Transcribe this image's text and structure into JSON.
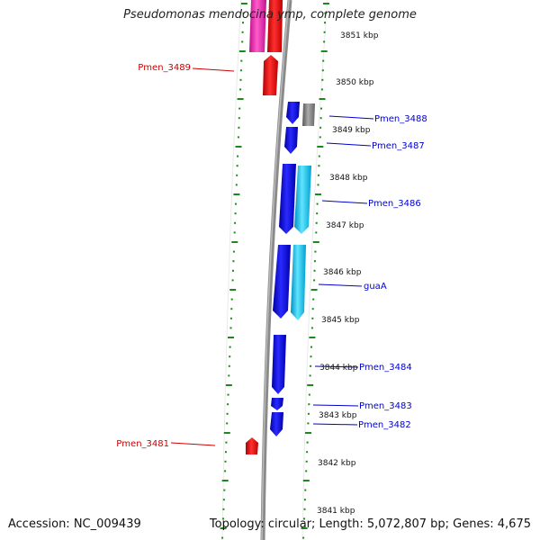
{
  "title": "Pseudomonas mendocina ymp, complete genome",
  "accession": "Accession: NC_009439",
  "summary": "Topology: circular; Length: 5,072,807 bp; Genes: 4,675",
  "colors": {
    "backbone": "#888888",
    "ticks": "#1a8a1a",
    "forward_label": "#cc0000",
    "reverse_label": "#0000cc",
    "gene_red": "#ee0000",
    "gene_magenta": "#ee1ea8",
    "gene_blue": "#0000ee",
    "gene_cyan": "#10c8f0",
    "gene_gray": "#777777"
  },
  "scale_labels": [
    "3851 kbp",
    "3850 kbp",
    "3849 kbp",
    "3848 kbp",
    "3847 kbp",
    "3846 kbp",
    "3845 kbp",
    "3844 kbp",
    "3843 kbp",
    "3842 kbp",
    "3841 kbp"
  ],
  "gene_labels": [
    {
      "text": "Pmen_3489",
      "color": "red"
    },
    {
      "text": "Pmen_3488",
      "color": "blue"
    },
    {
      "text": "Pmen_3487",
      "color": "blue"
    },
    {
      "text": "Pmen_3486",
      "color": "blue"
    },
    {
      "text": "guaA",
      "color": "blue"
    },
    {
      "text": "Pmen_3484",
      "color": "blue"
    },
    {
      "text": "Pmen_3483",
      "color": "blue"
    },
    {
      "text": "Pmen_3482",
      "color": "blue"
    },
    {
      "text": "Pmen_3481",
      "color": "red"
    }
  ]
}
